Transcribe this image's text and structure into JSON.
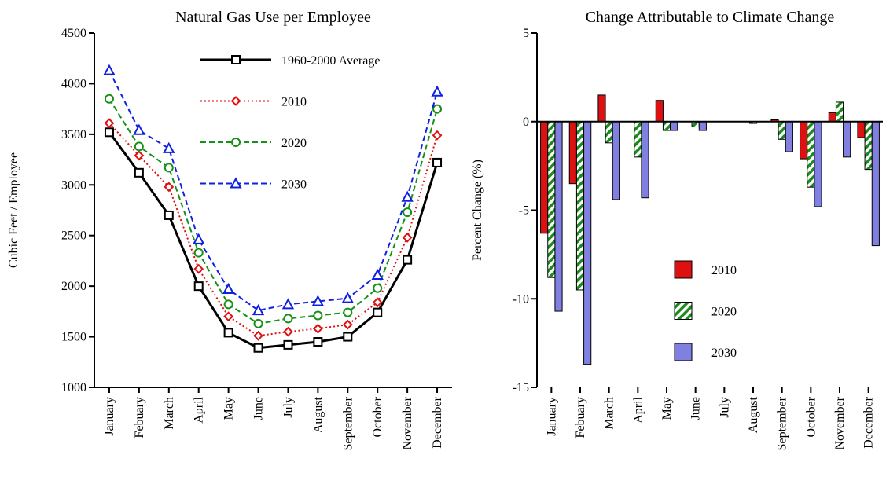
{
  "chart_data": [
    {
      "type": "line",
      "title": "Natural Gas Use per Employee",
      "ylabel": "Cubic Feet / Employee",
      "categories": [
        "January",
        "Febuary",
        "March",
        "April",
        "May",
        "June",
        "July",
        "August",
        "September",
        "October",
        "November",
        "December"
      ],
      "ylim": [
        1000,
        4500
      ],
      "yticks": [
        1000,
        1500,
        2000,
        2500,
        3000,
        3500,
        4000,
        4500
      ],
      "legend": "upper right",
      "series": [
        {
          "name": "1960-2000  Average",
          "color": "#000000",
          "dash": "solid",
          "marker": "square",
          "values": [
            3520,
            3120,
            2700,
            2000,
            1540,
            1390,
            1420,
            1450,
            1500,
            1740,
            2260,
            3220
          ]
        },
        {
          "name": "2010",
          "color": "#e01010",
          "dash": "dotted",
          "marker": "diamond",
          "values": [
            3610,
            3290,
            2980,
            2170,
            1700,
            1510,
            1550,
            1580,
            1620,
            1840,
            2480,
            3490
          ]
        },
        {
          "name": "2020",
          "color": "#169016",
          "dash": "dashed",
          "marker": "circle",
          "values": [
            3850,
            3380,
            3170,
            2330,
            1820,
            1630,
            1680,
            1710,
            1740,
            1980,
            2730,
            3750
          ]
        },
        {
          "name": "2030",
          "color": "#1020e0",
          "dash": "dashed",
          "marker": "triangle",
          "values": [
            4130,
            3540,
            3360,
            2460,
            1970,
            1760,
            1820,
            1850,
            1880,
            2110,
            2880,
            3920
          ]
        }
      ]
    },
    {
      "type": "bar",
      "title": "Change Attributable to Climate Change",
      "ylabel": "Percent Change (%)",
      "categories": [
        "January",
        "Febuary",
        "March",
        "April",
        "May",
        "June",
        "July",
        "August",
        "September",
        "October",
        "November",
        "December"
      ],
      "ylim": [
        -15,
        5
      ],
      "yticks": [
        -15,
        -10,
        -5,
        0,
        5
      ],
      "legend": "lower center",
      "series": [
        {
          "name": "2010",
          "color": "#dd1111",
          "fill": "solid",
          "values": [
            -6.3,
            -3.5,
            1.5,
            0,
            1.2,
            0,
            0,
            0,
            0.1,
            -2.1,
            0.5,
            -0.9
          ]
        },
        {
          "name": "2020",
          "color": "#1a8a1a",
          "fill": "hatch",
          "values": [
            -8.8,
            -9.5,
            -1.2,
            -2.0,
            -0.5,
            -0.3,
            0,
            -0.1,
            -1.0,
            -3.7,
            1.1,
            -2.7
          ]
        },
        {
          "name": "2030",
          "color": "#8080e0",
          "fill": "solid",
          "values": [
            -10.7,
            -13.7,
            -4.4,
            -4.3,
            -0.5,
            -0.5,
            0,
            0,
            -1.7,
            -4.8,
            -2.0,
            -7.0
          ]
        }
      ]
    }
  ]
}
